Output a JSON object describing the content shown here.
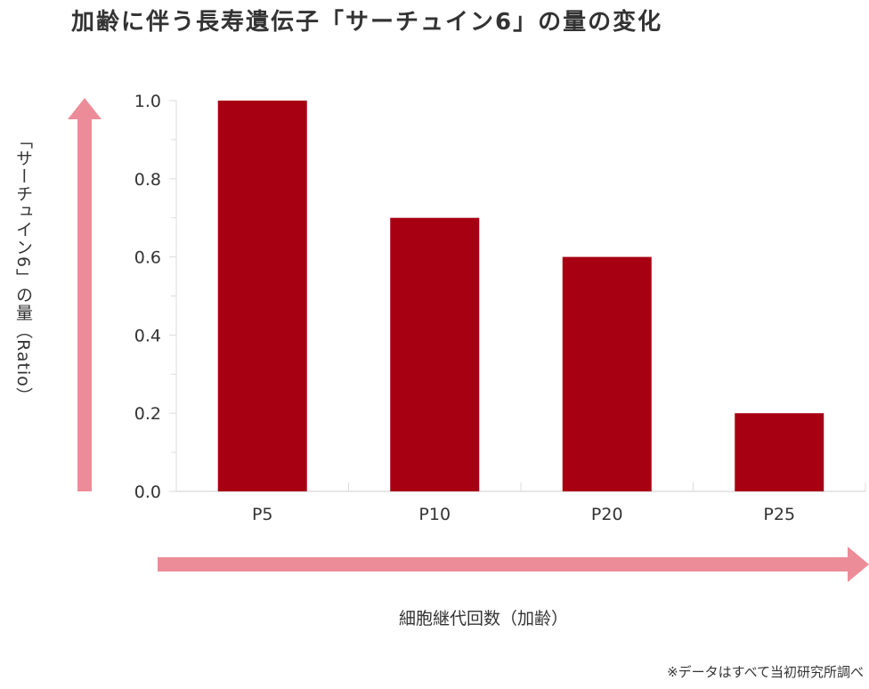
{
  "title": "加齢に伴う長寿遺伝子「サーチュイン6」の量の変化",
  "note": "※データはすべて当初研究所調べ",
  "colors": {
    "bar": "#a80013",
    "arrow": "#ec8c98",
    "grid": "#dddddd"
  },
  "chart_data": {
    "type": "bar",
    "title": "加齢に伴う長寿遺伝子「サーチュイン6」の量の変化",
    "xlabel": "細胞継代回数（加齢）",
    "ylabel": "「サーチュイン6」の量（Ratio）",
    "categories": [
      "P5",
      "P10",
      "P20",
      "P25"
    ],
    "values": [
      1.0,
      0.7,
      0.6,
      0.2
    ],
    "ylim": [
      0,
      1.0
    ],
    "yticks": [
      "0.0",
      "0.2",
      "0.4",
      "0.6",
      "0.8",
      "1.0"
    ]
  }
}
